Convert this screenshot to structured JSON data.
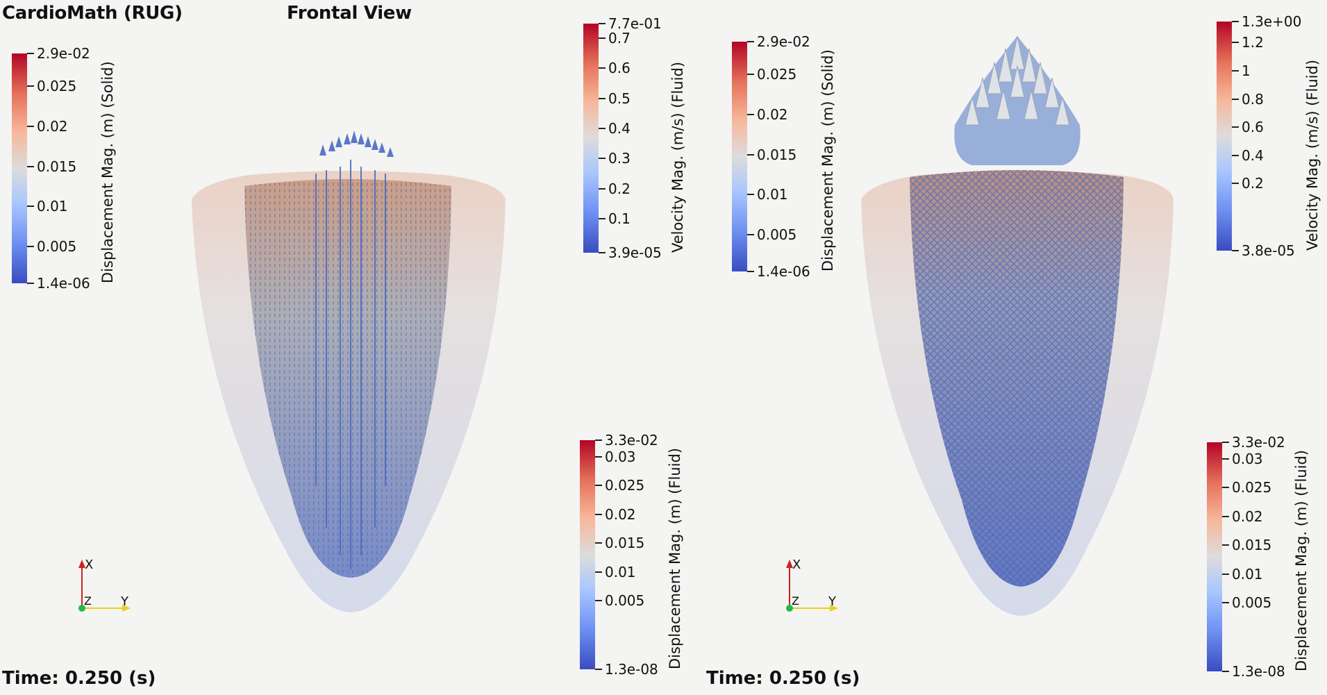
{
  "header": {
    "app_title": "CardioMath (RUG)",
    "view_title": "Frontal View"
  },
  "left_panel": {
    "time_label": "Time: 0.250 (s)",
    "solid_bar": {
      "title": "Displacement Mag. (m) (Solid)",
      "max": "2.9e-02",
      "min": "1.4e-06",
      "ticks": [
        "0.025",
        "0.02",
        "0.015",
        "0.01",
        "0.005"
      ]
    },
    "velocity_bar": {
      "title": "Velocity Mag. (m/s) (Fluid)",
      "max": "7.7e-01",
      "min": "3.9e-05",
      "ticks": [
        "0.7",
        "0.6",
        "0.5",
        "0.4",
        "0.3",
        "0.2",
        "0.1"
      ]
    },
    "fluid_bar": {
      "title": "Displacement Mag. (m) (Fluid)",
      "max": "3.3e-02",
      "min": "1.3e-08",
      "ticks": [
        "0.03",
        "0.025",
        "0.02",
        "0.015",
        "0.01",
        "0.005"
      ]
    },
    "axes": {
      "x": "X",
      "y": "Y",
      "z": "Z"
    }
  },
  "right_panel": {
    "time_label": "Time: 0.250 (s)",
    "solid_bar": {
      "title": "Displacement Mag. (m) (Solid)",
      "max": "2.9e-02",
      "min": "1.4e-06",
      "ticks": [
        "0.025",
        "0.02",
        "0.015",
        "0.01",
        "0.005"
      ]
    },
    "velocity_bar": {
      "title": "Velocity Mag. (m/s) (Fluid)",
      "max": "1.3e+00",
      "min": "3.8e-05",
      "ticks": [
        "1.2",
        "1",
        "0.8",
        "0.6",
        "0.4",
        "0.2"
      ]
    },
    "fluid_bar": {
      "title": "Displacement Mag. (m) (Fluid)",
      "max": "3.3e-02",
      "min": "1.3e-08",
      "ticks": [
        "0.03",
        "0.025",
        "0.02",
        "0.015",
        "0.01",
        "0.005"
      ]
    },
    "axes": {
      "x": "X",
      "y": "Y",
      "z": "Z"
    }
  },
  "colors": {
    "bar_low": "#3a4cc0",
    "bar_mid": "#dddcdc",
    "bar_high": "#b40426",
    "glyph": "#4d6bbf",
    "axis_x": "#cc2222",
    "axis_y": "#e8d020",
    "axis_z": "#22bb44"
  }
}
